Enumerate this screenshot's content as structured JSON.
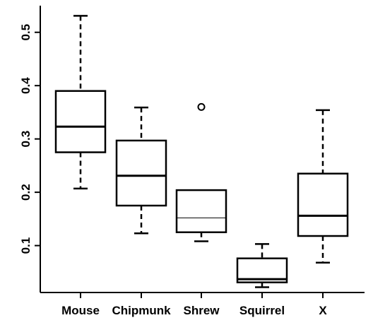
{
  "chart_data": {
    "type": "boxplot",
    "title": "",
    "xlabel": "",
    "ylabel": "",
    "ylim": [
      0.012,
      0.55
    ],
    "y_ticks": [
      0.1,
      0.2,
      0.3,
      0.4,
      0.5
    ],
    "y_tick_labels": [
      "0.1",
      "0.2",
      "0.3",
      "0.4",
      "0.5"
    ],
    "grid": false,
    "categories": [
      "Mouse",
      "Chipmunk",
      "Shrew",
      "Squirrel",
      "X"
    ],
    "boxes": [
      {
        "label": "Mouse",
        "whisker_low": 0.207,
        "q1": 0.275,
        "median": 0.323,
        "q3": 0.39,
        "whisker_high": 0.531,
        "outliers": [],
        "median_bold": true
      },
      {
        "label": "Chipmunk",
        "whisker_low": 0.123,
        "q1": 0.175,
        "median": 0.231,
        "q3": 0.297,
        "whisker_high": 0.359,
        "outliers": [],
        "median_bold": true
      },
      {
        "label": "Shrew",
        "whisker_low": 0.108,
        "q1": 0.125,
        "median": 0.152,
        "q3": 0.204,
        "whisker_high": 0.204,
        "outliers": [
          0.36
        ],
        "median_bold": false
      },
      {
        "label": "Squirrel",
        "whisker_low": 0.022,
        "q1": 0.031,
        "median": 0.037,
        "q3": 0.076,
        "whisker_high": 0.103,
        "outliers": [],
        "median_bold": true
      },
      {
        "label": "X",
        "whisker_low": 0.068,
        "q1": 0.118,
        "median": 0.156,
        "q3": 0.235,
        "whisker_high": 0.354,
        "outliers": [],
        "median_bold": true
      }
    ]
  }
}
